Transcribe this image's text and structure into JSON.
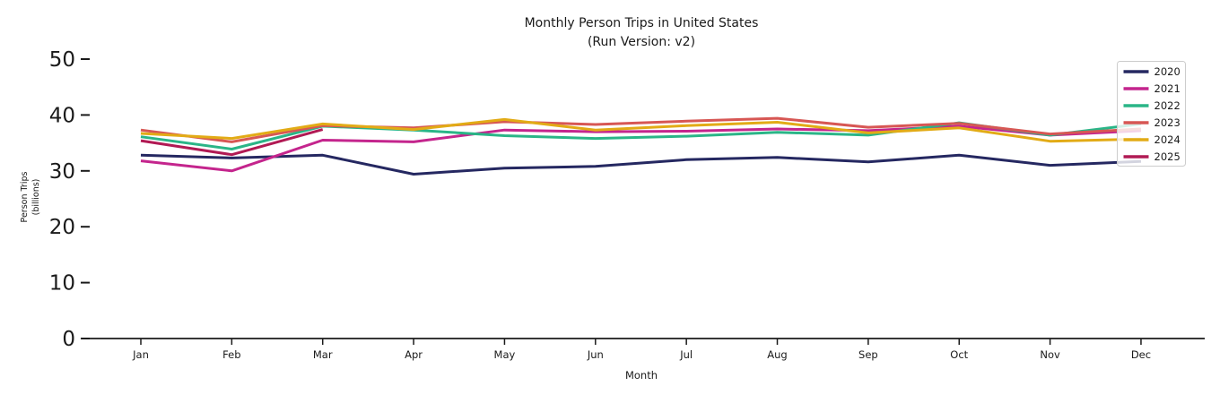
{
  "figure": {
    "title_line1": "Monthly Person Trips in United States",
    "title_line2": "(Run Version: v2)",
    "xlabel": "Month",
    "ylabel_line1": "Person Trips",
    "ylabel_line2": "(billions)"
  },
  "chart_data": {
    "type": "line",
    "title": "Monthly Person Trips in United States (Run Version: v2)",
    "xlabel": "Month",
    "ylabel": "Person Trips (billions)",
    "categories": [
      "Jan",
      "Feb",
      "Mar",
      "Apr",
      "May",
      "Jun",
      "Jul",
      "Aug",
      "Sep",
      "Oct",
      "Nov",
      "Dec"
    ],
    "yticks": [
      0,
      10,
      20,
      30,
      40,
      50
    ],
    "ylim": [
      0,
      52
    ],
    "grid": false,
    "legend_position": "upper right",
    "axis_color": "#1a1a1a",
    "legend_border_color": "#cccccc",
    "series": [
      {
        "name": "2020",
        "color": "#252861",
        "values": [
          32.8,
          32.3,
          32.8,
          29.4,
          30.5,
          30.8,
          32.0,
          32.4,
          31.6,
          32.8,
          31.0,
          31.7
        ]
      },
      {
        "name": "2021",
        "color": "#c4258d",
        "values": [
          31.8,
          30.0,
          35.5,
          35.2,
          37.3,
          37.0,
          37.1,
          37.5,
          37.2,
          38.0,
          36.4,
          37.2
        ]
      },
      {
        "name": "2022",
        "color": "#2ab587",
        "values": [
          36.1,
          33.9,
          38.0,
          37.3,
          36.3,
          35.8,
          36.2,
          36.9,
          36.4,
          38.6,
          36.4,
          38.4
        ]
      },
      {
        "name": "2023",
        "color": "#d75754",
        "values": [
          37.3,
          35.2,
          38.1,
          37.7,
          38.8,
          38.3,
          38.9,
          39.4,
          37.8,
          38.5,
          36.6,
          37.5
        ]
      },
      {
        "name": "2024",
        "color": "#e2ab16",
        "values": [
          36.7,
          35.8,
          38.4,
          37.4,
          39.2,
          37.3,
          38.1,
          38.7,
          36.8,
          37.7,
          35.3,
          35.7
        ]
      },
      {
        "name": "2025",
        "color": "#b11a54",
        "values": [
          35.4,
          32.9,
          37.4,
          null,
          null,
          null,
          null,
          null,
          null,
          null,
          null,
          null
        ]
      }
    ]
  }
}
